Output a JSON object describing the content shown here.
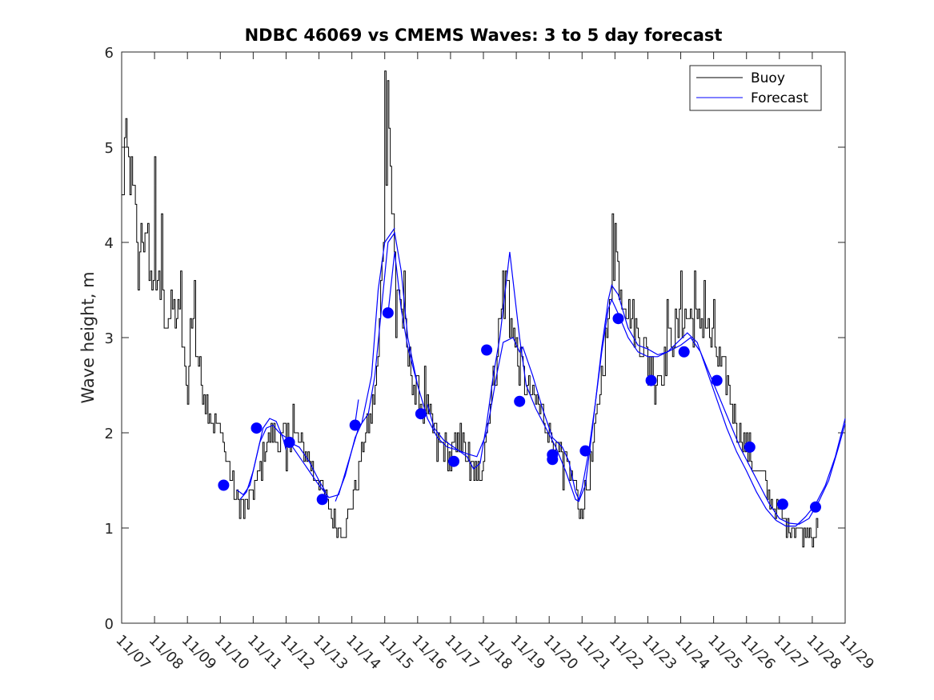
{
  "chart_data": {
    "type": "line",
    "title": "NDBC 46069 vs CMEMS Waves: 3 to 5 day forecast",
    "xlabel": "",
    "ylabel": "Wave height, m",
    "xlim": [
      0,
      22
    ],
    "ylim": [
      0,
      6
    ],
    "yticks": [
      0,
      1,
      2,
      3,
      4,
      5,
      6
    ],
    "xtick_labels": [
      "11/07",
      "11/08",
      "11/09",
      "11/10",
      "11/11",
      "11/12",
      "11/13",
      "11/14",
      "11/15",
      "11/16",
      "11/17",
      "11/18",
      "11/19",
      "11/20",
      "11/21",
      "11/22",
      "11/23",
      "11/24",
      "11/25",
      "11/26",
      "11/27",
      "11/28",
      "11/29"
    ],
    "legend": {
      "location": "top-right",
      "entries": [
        {
          "label": "Buoy",
          "color": "#000000"
        },
        {
          "label": "Forecast",
          "color": "#0000ff"
        }
      ]
    },
    "buoy_anchors": [
      [
        0.0,
        4.4
      ],
      [
        0.1,
        5.0
      ],
      [
        0.3,
        4.6
      ],
      [
        0.5,
        4.0
      ],
      [
        0.6,
        4.2
      ],
      [
        0.8,
        3.8
      ],
      [
        1.0,
        3.6
      ],
      [
        1.2,
        3.4
      ],
      [
        1.4,
        3.2
      ],
      [
        1.6,
        3.3
      ],
      [
        1.8,
        3.1
      ],
      [
        1.9,
        2.6
      ],
      [
        2.0,
        2.7
      ],
      [
        2.1,
        3.2
      ],
      [
        2.2,
        3.0
      ],
      [
        2.4,
        2.6
      ],
      [
        2.6,
        2.3
      ],
      [
        2.8,
        2.1
      ],
      [
        3.0,
        2.0
      ],
      [
        3.2,
        1.7
      ],
      [
        3.4,
        1.4
      ],
      [
        3.5,
        1.3
      ],
      [
        3.7,
        1.2
      ],
      [
        3.9,
        1.3
      ],
      [
        4.0,
        1.4
      ],
      [
        4.2,
        1.6
      ],
      [
        4.4,
        1.9
      ],
      [
        4.6,
        2.0
      ],
      [
        4.8,
        1.9
      ],
      [
        5.0,
        2.0
      ],
      [
        5.2,
        2.0
      ],
      [
        5.4,
        1.9
      ],
      [
        5.6,
        1.8
      ],
      [
        5.8,
        1.6
      ],
      [
        6.0,
        1.5
      ],
      [
        6.2,
        1.3
      ],
      [
        6.4,
        1.1
      ],
      [
        6.6,
        1.0
      ],
      [
        6.8,
        1.0
      ],
      [
        7.0,
        1.3
      ],
      [
        7.2,
        1.6
      ],
      [
        7.4,
        2.0
      ],
      [
        7.6,
        2.2
      ],
      [
        7.8,
        2.8
      ],
      [
        7.9,
        3.8
      ],
      [
        8.0,
        4.5
      ],
      [
        8.1,
        5.4
      ],
      [
        8.2,
        4.6
      ],
      [
        8.3,
        3.8
      ],
      [
        8.5,
        3.3
      ],
      [
        8.7,
        2.8
      ],
      [
        8.9,
        2.5
      ],
      [
        9.1,
        2.3
      ],
      [
        9.3,
        2.2
      ],
      [
        9.5,
        2.0
      ],
      [
        9.7,
        1.9
      ],
      [
        9.9,
        1.8
      ],
      [
        10.1,
        1.8
      ],
      [
        10.3,
        1.9
      ],
      [
        10.5,
        1.8
      ],
      [
        10.7,
        1.6
      ],
      [
        10.9,
        1.6
      ],
      [
        11.0,
        1.8
      ],
      [
        11.2,
        2.3
      ],
      [
        11.4,
        2.8
      ],
      [
        11.5,
        3.2
      ],
      [
        11.6,
        3.3
      ],
      [
        11.7,
        3.6
      ],
      [
        11.8,
        3.4
      ],
      [
        11.9,
        3.1
      ],
      [
        12.0,
        2.8
      ],
      [
        12.2,
        2.6
      ],
      [
        12.4,
        2.4
      ],
      [
        12.6,
        2.3
      ],
      [
        12.8,
        2.2
      ],
      [
        13.0,
        2.0
      ],
      [
        13.2,
        1.8
      ],
      [
        13.4,
        1.7
      ],
      [
        13.6,
        1.6
      ],
      [
        13.8,
        1.4
      ],
      [
        13.9,
        1.2
      ],
      [
        14.0,
        1.2
      ],
      [
        14.2,
        1.5
      ],
      [
        14.4,
        2.0
      ],
      [
        14.6,
        2.7
      ],
      [
        14.8,
        3.1
      ],
      [
        14.9,
        3.7
      ],
      [
        15.0,
        3.9
      ],
      [
        15.1,
        3.7
      ],
      [
        15.3,
        3.4
      ],
      [
        15.5,
        3.2
      ],
      [
        15.7,
        3.0
      ],
      [
        15.9,
        2.9
      ],
      [
        16.1,
        2.7
      ],
      [
        16.3,
        2.6
      ],
      [
        16.5,
        2.7
      ],
      [
        16.7,
        3.0
      ],
      [
        16.9,
        3.1
      ],
      [
        17.1,
        3.2
      ],
      [
        17.3,
        3.2
      ],
      [
        17.5,
        3.1
      ],
      [
        17.7,
        3.2
      ],
      [
        17.9,
        3.0
      ],
      [
        18.1,
        2.8
      ],
      [
        18.3,
        2.6
      ],
      [
        18.5,
        2.4
      ],
      [
        18.7,
        2.1
      ],
      [
        18.9,
        1.9
      ],
      [
        19.1,
        1.8
      ],
      [
        19.3,
        1.6
      ],
      [
        19.5,
        1.5
      ],
      [
        19.7,
        1.3
      ],
      [
        19.9,
        1.2
      ],
      [
        20.1,
        1.1
      ],
      [
        20.3,
        1.0
      ],
      [
        20.5,
        1.0
      ],
      [
        20.7,
        0.95
      ],
      [
        20.9,
        1.0
      ],
      [
        21.0,
        0.9
      ],
      [
        21.1,
        1.0
      ],
      [
        21.2,
        1.0
      ]
    ],
    "buoy_spikes": [
      [
        0.1,
        5.1
      ],
      [
        0.5,
        3.5
      ],
      [
        0.8,
        4.2
      ],
      [
        0.9,
        3.5
      ],
      [
        1.0,
        4.9
      ],
      [
        1.1,
        3.6
      ],
      [
        1.2,
        4.3
      ],
      [
        1.8,
        3.7
      ],
      [
        2.0,
        2.3
      ],
      [
        2.2,
        3.6
      ],
      [
        3.1,
        1.9
      ],
      [
        3.7,
        1.1
      ],
      [
        4.4,
        1.9
      ],
      [
        5.0,
        1.6
      ],
      [
        5.2,
        2.3
      ],
      [
        6.4,
        1.0
      ],
      [
        6.8,
        0.9
      ],
      [
        8.0,
        5.8
      ],
      [
        8.1,
        5.7
      ],
      [
        8.2,
        4.3
      ],
      [
        8.35,
        3.0
      ],
      [
        8.6,
        3.7
      ],
      [
        8.9,
        2.3
      ],
      [
        9.2,
        2.7
      ],
      [
        9.6,
        1.7
      ],
      [
        10.0,
        1.6
      ],
      [
        10.3,
        2.1
      ],
      [
        10.6,
        1.5
      ],
      [
        10.8,
        1.5
      ],
      [
        11.6,
        3.7
      ],
      [
        11.8,
        3.0
      ],
      [
        12.0,
        3.0
      ],
      [
        12.9,
        2.0
      ],
      [
        13.4,
        1.4
      ],
      [
        13.8,
        1.5
      ],
      [
        14.0,
        1.1
      ],
      [
        14.9,
        4.3
      ],
      [
        15.0,
        4.2
      ],
      [
        15.2,
        3.3
      ],
      [
        16.0,
        2.5
      ],
      [
        16.2,
        2.3
      ],
      [
        16.6,
        3.4
      ],
      [
        17.0,
        3.7
      ],
      [
        17.4,
        3.7
      ],
      [
        17.7,
        3.6
      ],
      [
        18.0,
        3.4
      ],
      [
        18.4,
        2.6
      ],
      [
        19.2,
        1.6
      ],
      [
        20.3,
        0.95
      ],
      [
        21.0,
        0.8
      ]
    ],
    "forecast_segments": [
      [
        [
          3.5,
          1.4
        ],
        [
          3.7,
          1.35
        ],
        [
          3.9,
          1.45
        ],
        [
          4.1,
          1.75
        ],
        [
          4.3,
          2.05
        ],
        [
          4.5,
          2.15
        ],
        [
          4.7,
          2.12
        ],
        [
          4.9,
          1.95
        ],
        [
          5.0,
          1.82
        ]
      ],
      [
        [
          3.6,
          1.3
        ],
        [
          3.8,
          1.38
        ],
        [
          4.0,
          1.6
        ],
        [
          4.2,
          1.9
        ],
        [
          4.4,
          2.05
        ],
        [
          4.6,
          2.08
        ],
        [
          4.8,
          2.0
        ],
        [
          5.0,
          1.95
        ],
        [
          5.3,
          1.8
        ],
        [
          5.7,
          1.6
        ],
        [
          6.0,
          1.45
        ],
        [
          6.3,
          1.32
        ],
        [
          6.6,
          1.35
        ],
        [
          6.9,
          1.7
        ],
        [
          7.2,
          2.05
        ],
        [
          7.5,
          2.2
        ],
        [
          7.7,
          2.6
        ],
        [
          7.9,
          3.3
        ],
        [
          8.1,
          4.0
        ],
        [
          8.3,
          4.1
        ],
        [
          8.5,
          3.7
        ],
        [
          8.7,
          3.0
        ],
        [
          9.0,
          2.5
        ],
        [
          9.3,
          2.15
        ],
        [
          9.6,
          1.95
        ],
        [
          9.9,
          1.85
        ],
        [
          10.2,
          1.82
        ],
        [
          10.5,
          1.78
        ],
        [
          10.8,
          1.75
        ],
        [
          11.1,
          2.0
        ],
        [
          11.4,
          2.6
        ],
        [
          11.6,
          2.95
        ],
        [
          11.9,
          3.0
        ],
        [
          12.1,
          2.85
        ],
        [
          12.2,
          2.9
        ],
        [
          12.5,
          2.6
        ],
        [
          12.8,
          2.25
        ],
        [
          13.1,
          1.95
        ],
        [
          13.4,
          1.85
        ],
        [
          13.6,
          1.7
        ],
        [
          13.8,
          1.38
        ],
        [
          13.9,
          1.3
        ],
        [
          14.0,
          1.42
        ],
        [
          14.2,
          1.8
        ],
        [
          14.4,
          2.3
        ],
        [
          14.6,
          2.85
        ],
        [
          14.8,
          3.3
        ],
        [
          14.9,
          3.4
        ],
        [
          15.1,
          3.25
        ],
        [
          15.4,
          3.0
        ],
        [
          15.7,
          2.85
        ],
        [
          16.0,
          2.8
        ],
        [
          16.3,
          2.8
        ],
        [
          16.6,
          2.85
        ],
        [
          17.0,
          2.92
        ],
        [
          17.3,
          3.0
        ],
        [
          17.6,
          2.85
        ],
        [
          17.9,
          2.6
        ],
        [
          18.2,
          2.35
        ],
        [
          18.5,
          2.1
        ],
        [
          18.8,
          1.85
        ],
        [
          19.1,
          1.65
        ],
        [
          19.4,
          1.45
        ],
        [
          19.7,
          1.25
        ],
        [
          20.0,
          1.1
        ],
        [
          20.3,
          1.05
        ],
        [
          20.6,
          1.04
        ],
        [
          20.9,
          1.1
        ],
        [
          21.2,
          1.28
        ],
        [
          21.5,
          1.5
        ],
        [
          21.8,
          1.85
        ],
        [
          22.0,
          2.1
        ]
      ],
      [
        [
          6.5,
          1.28
        ],
        [
          6.8,
          1.55
        ],
        [
          7.1,
          1.95
        ],
        [
          7.3,
          2.1
        ],
        [
          7.6,
          2.6
        ],
        [
          7.8,
          3.5
        ],
        [
          8.0,
          4.0
        ],
        [
          8.3,
          4.15
        ]
      ],
      [
        [
          8.1,
          3.25
        ],
        [
          8.3,
          3.9
        ],
        [
          8.5,
          3.3
        ],
        [
          8.7,
          2.9
        ],
        [
          9.0,
          2.5
        ]
      ],
      [
        [
          9.3,
          2.3
        ],
        [
          9.5,
          2.05
        ],
        [
          9.8,
          1.92
        ],
        [
          10.1,
          1.85
        ],
        [
          10.5,
          1.75
        ],
        [
          10.7,
          1.62
        ],
        [
          10.9,
          1.68
        ],
        [
          11.1,
          2.1
        ],
        [
          11.3,
          2.6
        ],
        [
          11.5,
          3.0
        ],
        [
          11.7,
          3.6
        ],
        [
          11.8,
          3.9
        ],
        [
          11.9,
          3.6
        ],
        [
          12.1,
          3.0
        ],
        [
          12.3,
          2.5
        ],
        [
          12.6,
          2.25
        ],
        [
          12.9,
          2.05
        ],
        [
          13.2,
          1.85
        ],
        [
          13.5,
          1.6
        ],
        [
          13.8,
          1.3
        ],
        [
          13.9,
          1.28
        ],
        [
          14.1,
          1.45
        ],
        [
          14.3,
          2.0
        ],
        [
          14.6,
          2.9
        ],
        [
          14.8,
          3.4
        ],
        [
          14.9,
          3.55
        ],
        [
          15.1,
          3.45
        ],
        [
          15.4,
          3.1
        ],
        [
          15.7,
          2.92
        ],
        [
          16.0,
          2.88
        ],
        [
          16.3,
          2.82
        ],
        [
          16.6,
          2.85
        ],
        [
          16.9,
          2.95
        ],
        [
          17.2,
          3.05
        ],
        [
          17.5,
          2.95
        ],
        [
          17.8,
          2.65
        ],
        [
          18.1,
          2.35
        ],
        [
          18.4,
          2.05
        ],
        [
          18.7,
          1.8
        ],
        [
          19.0,
          1.6
        ],
        [
          19.3,
          1.38
        ],
        [
          19.6,
          1.2
        ],
        [
          19.9,
          1.08
        ],
        [
          20.2,
          1.02
        ],
        [
          20.5,
          1.02
        ],
        [
          20.8,
          1.12
        ],
        [
          21.1,
          1.25
        ],
        [
          21.4,
          1.45
        ],
        [
          21.7,
          1.75
        ],
        [
          22.0,
          2.15
        ]
      ],
      [
        [
          7.1,
          2.1
        ],
        [
          7.2,
          2.35
        ]
      ],
      [
        [
          5.1,
          1.9
        ],
        [
          5.4,
          1.85
        ],
        [
          5.7,
          1.7
        ],
        [
          6.0,
          1.5
        ],
        [
          6.2,
          1.38
        ]
      ]
    ],
    "forecast_markers": [
      [
        3.1,
        1.45
      ],
      [
        4.1,
        2.05
      ],
      [
        5.1,
        1.9
      ],
      [
        6.1,
        1.3
      ],
      [
        7.1,
        2.08
      ],
      [
        8.1,
        3.26
      ],
      [
        9.1,
        2.2
      ],
      [
        10.1,
        1.7
      ],
      [
        11.1,
        2.87
      ],
      [
        12.1,
        2.33
      ],
      [
        13.1,
        1.77
      ],
      [
        13.1,
        1.72
      ],
      [
        14.1,
        1.81
      ],
      [
        15.1,
        3.2
      ],
      [
        16.1,
        2.55
      ],
      [
        17.1,
        2.85
      ],
      [
        18.1,
        2.55
      ],
      [
        19.1,
        1.85
      ],
      [
        20.1,
        1.25
      ],
      [
        21.1,
        1.22
      ]
    ]
  }
}
